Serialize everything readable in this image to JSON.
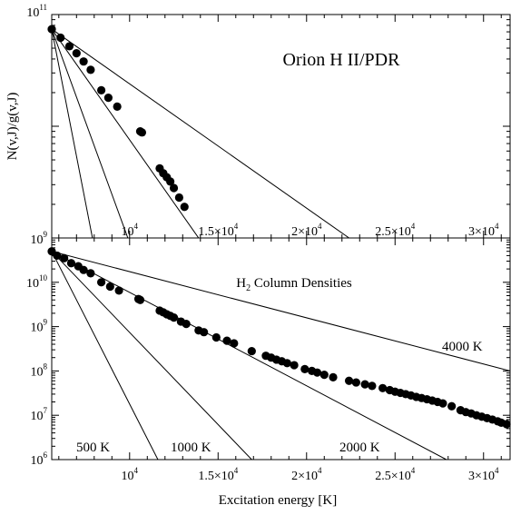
{
  "chart_data": [
    {
      "type": "scatter",
      "panel": "top",
      "title": "Orion H II/PDR",
      "ylabel": "N(v,J)/g(v,J)",
      "xlabel": "",
      "x_range": [
        5600,
        31500
      ],
      "y_range": [
        1000000000.0,
        100000000000.0
      ],
      "y_scale": "log",
      "x_ticks": [
        10000,
        15000,
        20000,
        25000,
        30000
      ],
      "x_tick_labels": [
        "10^4",
        "1.5×10^4",
        "2×10^4",
        "2.5×10^4",
        "3×10^4"
      ],
      "y_ticks": [
        1000000000.0,
        100000000000.0
      ],
      "y_tick_labels": [
        "10^9",
        "10^11"
      ],
      "series": [
        {
          "points": [
            {
              "x": 5600,
              "y": 74000000000.0
            },
            {
              "x": 6100,
              "y": 62000000000.0
            },
            {
              "x": 6600,
              "y": 52000000000.0
            },
            {
              "x": 7000,
              "y": 45000000000.0
            },
            {
              "x": 7400,
              "y": 38000000000.0
            },
            {
              "x": 7800,
              "y": 32000000000.0
            },
            {
              "x": 8400,
              "y": 21000000000.0
            },
            {
              "x": 8800,
              "y": 18000000000.0
            },
            {
              "x": 9300,
              "y": 15000000000.0
            },
            {
              "x": 10600,
              "y": 9000000000.0
            },
            {
              "x": 10700,
              "y": 8800000000.0
            },
            {
              "x": 11700,
              "y": 4200000000.0
            },
            {
              "x": 11900,
              "y": 3800000000.0
            },
            {
              "x": 12100,
              "y": 3500000000.0
            },
            {
              "x": 12300,
              "y": 3200000000.0
            },
            {
              "x": 12500,
              "y": 2800000000.0
            },
            {
              "x": 12800,
              "y": 2300000000.0
            },
            {
              "x": 13100,
              "y": 1900000000.0
            }
          ]
        }
      ],
      "model_lines": [
        {
          "from": [
            5600,
            74000000000.0
          ],
          "to": [
            7900,
            1000000000.0
          ]
        },
        {
          "from": [
            5600,
            74000000000.0
          ],
          "to": [
            9900,
            1000000000.0
          ]
        },
        {
          "from": [
            5600,
            74000000000.0
          ],
          "to": [
            13900,
            1000000000.0
          ]
        },
        {
          "from": [
            5600,
            74000000000.0
          ],
          "to": [
            22400,
            1000000000.0
          ]
        }
      ]
    },
    {
      "type": "scatter",
      "panel": "bottom",
      "title": "H2 Column Densities",
      "ylabel": "",
      "xlabel": "Excitation energy [K]",
      "x_range": [
        5600,
        31500
      ],
      "y_range": [
        1000000.0,
        100000000000.0
      ],
      "y_scale": "log",
      "x_ticks": [
        10000,
        15000,
        20000,
        25000,
        30000
      ],
      "x_tick_labels": [
        "10^4",
        "1.5×10^4",
        "2×10^4",
        "2.5×10^4",
        "3×10^4"
      ],
      "y_ticks": [
        1000000.0,
        10000000.0,
        100000000.0,
        1000000000.0,
        10000000000.0
      ],
      "y_tick_labels": [
        "10^6",
        "10^7",
        "10^8",
        "10^9",
        "10^10"
      ],
      "series": [
        {
          "points": [
            {
              "x": 5600,
              "y": 50000000000.0
            },
            {
              "x": 5900,
              "y": 40000000000.0
            },
            {
              "x": 6300,
              "y": 35000000000.0
            },
            {
              "x": 6700,
              "y": 27000000000.0
            },
            {
              "x": 7100,
              "y": 23000000000.0
            },
            {
              "x": 7400,
              "y": 19000000000.0
            },
            {
              "x": 7800,
              "y": 16000000000.0
            },
            {
              "x": 8400,
              "y": 10000000000.0
            },
            {
              "x": 8900,
              "y": 8000000000.0
            },
            {
              "x": 9400,
              "y": 6500000000.0
            },
            {
              "x": 10500,
              "y": 4200000000.0
            },
            {
              "x": 10600,
              "y": 4000000000.0
            },
            {
              "x": 11700,
              "y": 2300000000.0
            },
            {
              "x": 11900,
              "y": 2100000000.0
            },
            {
              "x": 12100,
              "y": 1900000000.0
            },
            {
              "x": 12300,
              "y": 1750000000.0
            },
            {
              "x": 12500,
              "y": 1600000000.0
            },
            {
              "x": 12900,
              "y": 1300000000.0
            },
            {
              "x": 13200,
              "y": 1150000000.0
            },
            {
              "x": 13900,
              "y": 820000000.0
            },
            {
              "x": 14200,
              "y": 750000000.0
            },
            {
              "x": 14900,
              "y": 570000000.0
            },
            {
              "x": 15500,
              "y": 480000000.0
            },
            {
              "x": 15900,
              "y": 420000000.0
            },
            {
              "x": 16900,
              "y": 280000000.0
            },
            {
              "x": 17700,
              "y": 220000000.0
            },
            {
              "x": 18000,
              "y": 200000000.0
            },
            {
              "x": 18300,
              "y": 180000000.0
            },
            {
              "x": 18600,
              "y": 165000000.0
            },
            {
              "x": 18900,
              "y": 150000000.0
            },
            {
              "x": 19300,
              "y": 135000000.0
            },
            {
              "x": 19900,
              "y": 110000000.0
            },
            {
              "x": 20300,
              "y": 100000000.0
            },
            {
              "x": 20600,
              "y": 92000000.0
            },
            {
              "x": 21000,
              "y": 82000000.0
            },
            {
              "x": 21500,
              "y": 72000000.0
            },
            {
              "x": 22400,
              "y": 60000000.0
            },
            {
              "x": 22800,
              "y": 55000000.0
            },
            {
              "x": 23300,
              "y": 50000000.0
            },
            {
              "x": 23700,
              "y": 46000000.0
            },
            {
              "x": 24300,
              "y": 41000000.0
            },
            {
              "x": 24700,
              "y": 37000000.0
            },
            {
              "x": 25000,
              "y": 34000000.0
            },
            {
              "x": 25300,
              "y": 32000000.0
            },
            {
              "x": 25600,
              "y": 30000000.0
            },
            {
              "x": 25900,
              "y": 28000000.0
            },
            {
              "x": 26200,
              "y": 26000000.0
            },
            {
              "x": 26500,
              "y": 24500000.0
            },
            {
              "x": 26800,
              "y": 23000000.0
            },
            {
              "x": 27100,
              "y": 21500000.0
            },
            {
              "x": 27400,
              "y": 20000000.0
            },
            {
              "x": 27700,
              "y": 18500000.0
            },
            {
              "x": 28200,
              "y": 16000000.0
            },
            {
              "x": 28700,
              "y": 13000000.0
            },
            {
              "x": 29000,
              "y": 11800000.0
            },
            {
              "x": 29300,
              "y": 11000000.0
            },
            {
              "x": 29600,
              "y": 10000000.0
            },
            {
              "x": 29900,
              "y": 9300000.0
            },
            {
              "x": 30200,
              "y": 8600000.0
            },
            {
              "x": 30500,
              "y": 8000000.0
            },
            {
              "x": 30800,
              "y": 7300000.0
            },
            {
              "x": 31000,
              "y": 6800000.0
            },
            {
              "x": 31300,
              "y": 6300000.0
            }
          ]
        }
      ],
      "model_lines": [
        {
          "label": "500 K",
          "from": [
            5600,
            50000000000.0
          ],
          "to": [
            11600,
            1000000.0
          ]
        },
        {
          "label": "1000 K",
          "from": [
            5600,
            50000000000.0
          ],
          "to": [
            16900,
            1000000.0
          ]
        },
        {
          "label": "2000 K",
          "from": [
            5600,
            50000000000.0
          ],
          "to": [
            27900,
            1000000.0
          ]
        },
        {
          "label": "4000 K",
          "from": [
            5600,
            50000000000.0
          ],
          "to": [
            31500,
            100000000.0
          ]
        }
      ]
    }
  ]
}
